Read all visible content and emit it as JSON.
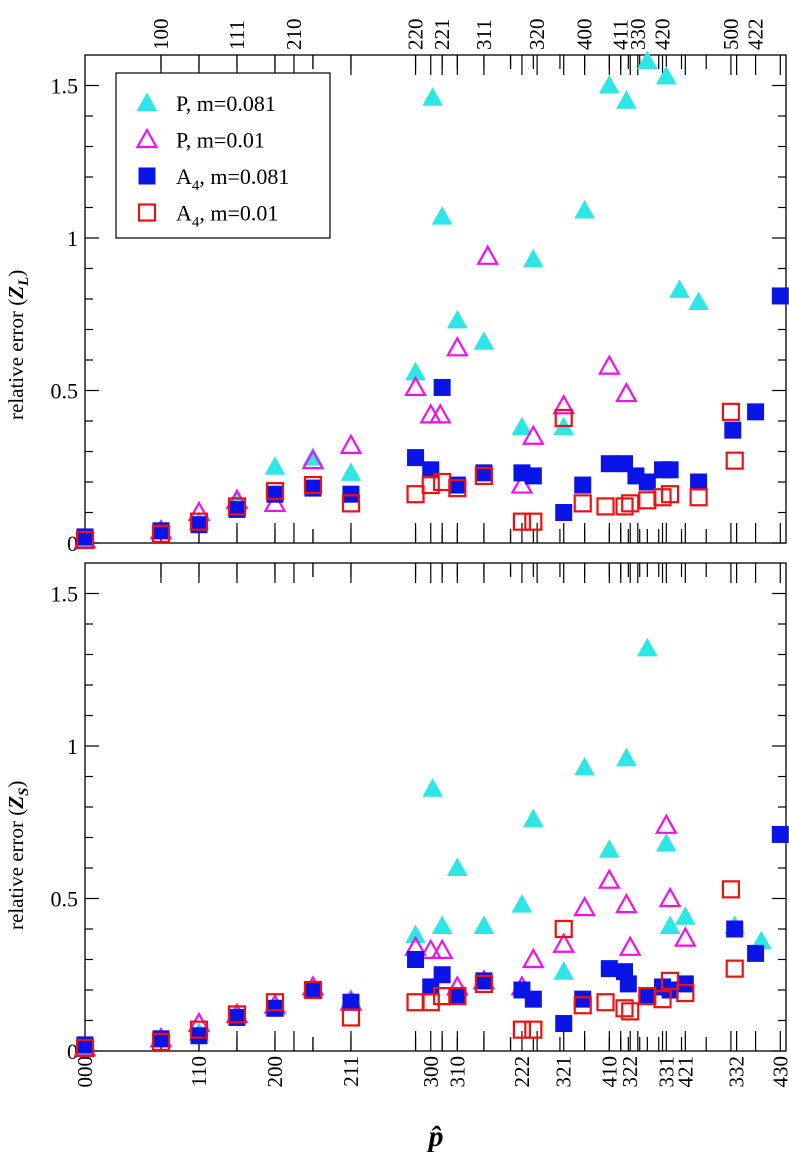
{
  "chart_data": [
    {
      "type": "scatter",
      "panel": "top",
      "ylabel_text": "relative error (",
      "ylabel_var": "Z",
      "ylabel_sub": "L",
      "ylabel_close": ")",
      "ylim": [
        0,
        1.6
      ],
      "yticks": [
        0,
        0.5,
        1,
        1.5
      ],
      "ytick_labels": [
        "0",
        "0.5",
        "1",
        "1.5"
      ],
      "legend_position": "top-left",
      "series": [
        {
          "name": "P, m=0.081",
          "marker": "filled-triangle",
          "color": "#2ee6e6",
          "points": [
            [
              0,
              0.01
            ],
            [
              4,
              0.04
            ],
            [
              6,
              0.07
            ],
            [
              8,
              0.14
            ],
            [
              10,
              0.25
            ],
            [
              12,
              0.28
            ],
            [
              14,
              0.23
            ],
            [
              17.4,
              0.56
            ],
            [
              18.3,
              1.46
            ],
            [
              18.8,
              1.07
            ],
            [
              19.6,
              0.73
            ],
            [
              21,
              0.66
            ],
            [
              23,
              0.38
            ],
            [
              23.6,
              0.93
            ],
            [
              25.2,
              0.38
            ],
            [
              26.3,
              1.09
            ],
            [
              27.6,
              1.5
            ],
            [
              28.5,
              1.45
            ],
            [
              29.6,
              1.58
            ],
            [
              30.6,
              1.53
            ],
            [
              31.3,
              0.83
            ],
            [
              32.3,
              0.79
            ]
          ]
        },
        {
          "name": "P, m=0.01",
          "marker": "open-triangle",
          "color": "#ee11ee",
          "points": [
            [
              0,
              0.01
            ],
            [
              4,
              0.04
            ],
            [
              6,
              0.1
            ],
            [
              8,
              0.14
            ],
            [
              10,
              0.13
            ],
            [
              12,
              0.27
            ],
            [
              14,
              0.32
            ],
            [
              17.4,
              0.51
            ],
            [
              18.2,
              0.42
            ],
            [
              18.7,
              0.42
            ],
            [
              19.6,
              0.64
            ],
            [
              21.2,
              0.94
            ],
            [
              23,
              0.19
            ],
            [
              23.6,
              0.35
            ],
            [
              25.2,
              0.45
            ],
            [
              27.6,
              0.58
            ],
            [
              28.5,
              0.49
            ]
          ]
        },
        {
          "name": "A4, m=0.081",
          "marker": "filled-square",
          "color": "#0a14e6",
          "points": [
            [
              0,
              0.02
            ],
            [
              4,
              0.04
            ],
            [
              6,
              0.06
            ],
            [
              8,
              0.11
            ],
            [
              10,
              0.16
            ],
            [
              12,
              0.18
            ],
            [
              14,
              0.16
            ],
            [
              17.4,
              0.28
            ],
            [
              18.2,
              0.24
            ],
            [
              18.8,
              0.51
            ],
            [
              19.6,
              0.19
            ],
            [
              21,
              0.23
            ],
            [
              23,
              0.23
            ],
            [
              23.6,
              0.22
            ],
            [
              25.2,
              0.1
            ],
            [
              26.2,
              0.19
            ],
            [
              27.6,
              0.26
            ],
            [
              28.4,
              0.26
            ],
            [
              29,
              0.22
            ],
            [
              29.6,
              0.2
            ],
            [
              30.4,
              0.24
            ],
            [
              30.8,
              0.24
            ],
            [
              32.3,
              0.2
            ],
            [
              34.1,
              0.37
            ],
            [
              35.3,
              0.43
            ],
            [
              36.6,
              0.81
            ]
          ]
        },
        {
          "name": "A4, m=0.01",
          "marker": "open-square",
          "color": "#ee1111",
          "points": [
            [
              0,
              0.01
            ],
            [
              4,
              0.03
            ],
            [
              6,
              0.07
            ],
            [
              8,
              0.12
            ],
            [
              10,
              0.17
            ],
            [
              12,
              0.19
            ],
            [
              14,
              0.13
            ],
            [
              17.4,
              0.16
            ],
            [
              18.2,
              0.19
            ],
            [
              18.8,
              0.2
            ],
            [
              19.6,
              0.18
            ],
            [
              21,
              0.22
            ],
            [
              23,
              0.07
            ],
            [
              23.6,
              0.07
            ],
            [
              25.2,
              0.41
            ],
            [
              26.2,
              0.13
            ],
            [
              27.4,
              0.12
            ],
            [
              28.4,
              0.12
            ],
            [
              28.7,
              0.13
            ],
            [
              29.6,
              0.14
            ],
            [
              30.4,
              0.15
            ],
            [
              30.8,
              0.16
            ],
            [
              32.3,
              0.15
            ],
            [
              34,
              0.43
            ],
            [
              34.2,
              0.27
            ]
          ]
        }
      ],
      "legend": [
        {
          "marker": "filled-triangle",
          "color": "#2ee6e6",
          "text": "P, m=0.081",
          "sub": "",
          "suffix": ""
        },
        {
          "marker": "open-triangle",
          "color": "#ee11ee",
          "text": "P, m=0.01",
          "sub": "",
          "suffix": ""
        },
        {
          "marker": "filled-square",
          "color": "#0a14e6",
          "text": "A",
          "sub": "4",
          "suffix": ", m=0.081"
        },
        {
          "marker": "open-square",
          "color": "#ee1111",
          "text": "A",
          "sub": "4",
          "suffix": ", m=0.01"
        }
      ]
    },
    {
      "type": "scatter",
      "panel": "bottom",
      "ylabel_text": "relative error (",
      "ylabel_var": "Z",
      "ylabel_sub": "S",
      "ylabel_close": ")",
      "xlabel": "p̂",
      "ylim": [
        0,
        1.6
      ],
      "yticks": [
        0,
        0.5,
        1,
        1.5
      ],
      "ytick_labels": [
        "0",
        "0.5",
        "1",
        "1.5"
      ],
      "series": [
        {
          "name": "P, m=0.081",
          "marker": "filled-triangle",
          "color": "#2ee6e6",
          "points": [
            [
              0,
              0.01
            ],
            [
              4,
              0.04
            ],
            [
              6,
              0.06
            ],
            [
              8,
              0.12
            ],
            [
              10,
              0.14
            ],
            [
              12,
              0.2
            ],
            [
              14,
              0.17
            ],
            [
              17.4,
              0.38
            ],
            [
              18.3,
              0.86
            ],
            [
              18.8,
              0.41
            ],
            [
              19.6,
              0.6
            ],
            [
              21,
              0.41
            ],
            [
              23,
              0.48
            ],
            [
              23.6,
              0.76
            ],
            [
              25.2,
              0.26
            ],
            [
              26.3,
              0.93
            ],
            [
              27.6,
              0.66
            ],
            [
              28.5,
              0.96
            ],
            [
              29.6,
              1.32
            ],
            [
              30.6,
              0.68
            ],
            [
              30.8,
              0.41
            ],
            [
              31.6,
              0.44
            ],
            [
              34.2,
              0.41
            ],
            [
              35.6,
              0.36
            ]
          ]
        },
        {
          "name": "P, m=0.01",
          "marker": "open-triangle",
          "color": "#ee11ee",
          "points": [
            [
              0,
              0.01
            ],
            [
              4,
              0.04
            ],
            [
              6,
              0.09
            ],
            [
              8,
              0.12
            ],
            [
              10,
              0.15
            ],
            [
              12,
              0.21
            ],
            [
              14,
              0.16
            ],
            [
              17.4,
              0.34
            ],
            [
              18.2,
              0.33
            ],
            [
              18.8,
              0.33
            ],
            [
              19.6,
              0.21
            ],
            [
              21,
              0.23
            ],
            [
              23,
              0.21
            ],
            [
              23.6,
              0.3
            ],
            [
              25.2,
              0.35
            ],
            [
              26.3,
              0.47
            ],
            [
              27.6,
              0.56
            ],
            [
              28.5,
              0.48
            ],
            [
              28.7,
              0.34
            ],
            [
              30.6,
              0.74
            ],
            [
              30.8,
              0.5
            ],
            [
              31.6,
              0.37
            ]
          ]
        },
        {
          "name": "A4, m=0.081",
          "marker": "filled-square",
          "color": "#0a14e6",
          "points": [
            [
              0,
              0.02
            ],
            [
              4,
              0.04
            ],
            [
              6,
              0.05
            ],
            [
              8,
              0.11
            ],
            [
              10,
              0.14
            ],
            [
              12,
              0.2
            ],
            [
              14,
              0.16
            ],
            [
              17.4,
              0.3
            ],
            [
              18.2,
              0.21
            ],
            [
              18.8,
              0.25
            ],
            [
              19.6,
              0.18
            ],
            [
              21,
              0.23
            ],
            [
              23,
              0.2
            ],
            [
              23.6,
              0.17
            ],
            [
              25.2,
              0.09
            ],
            [
              26.2,
              0.17
            ],
            [
              27.6,
              0.27
            ],
            [
              28.4,
              0.26
            ],
            [
              28.6,
              0.22
            ],
            [
              29.6,
              0.18
            ],
            [
              30.4,
              0.21
            ],
            [
              30.8,
              0.2
            ],
            [
              31.6,
              0.22
            ],
            [
              34.2,
              0.4
            ],
            [
              35.3,
              0.32
            ],
            [
              36.6,
              0.71
            ]
          ]
        },
        {
          "name": "A4, m=0.01",
          "marker": "open-square",
          "color": "#ee1111",
          "points": [
            [
              0,
              0.01
            ],
            [
              4,
              0.03
            ],
            [
              6,
              0.07
            ],
            [
              8,
              0.12
            ],
            [
              10,
              0.16
            ],
            [
              12,
              0.2
            ],
            [
              14,
              0.11
            ],
            [
              17.4,
              0.16
            ],
            [
              18.2,
              0.16
            ],
            [
              18.8,
              0.18
            ],
            [
              19.6,
              0.18
            ],
            [
              21,
              0.22
            ],
            [
              23,
              0.07
            ],
            [
              23.6,
              0.07
            ],
            [
              25.2,
              0.4
            ],
            [
              26.2,
              0.15
            ],
            [
              27.4,
              0.16
            ],
            [
              28.4,
              0.14
            ],
            [
              28.7,
              0.13
            ],
            [
              29.6,
              0.18
            ],
            [
              30.4,
              0.17
            ],
            [
              30.8,
              0.23
            ],
            [
              31.6,
              0.19
            ],
            [
              34,
              0.53
            ],
            [
              34.2,
              0.27
            ]
          ]
        }
      ]
    }
  ],
  "x_axis": {
    "xlim": [
      0,
      36.9
    ],
    "top_ticks": [
      {
        "x": 4,
        "label": "100"
      },
      {
        "x": 8,
        "label": "111"
      },
      {
        "x": 11,
        "label": "210"
      },
      {
        "x": 17.4,
        "label": "220"
      },
      {
        "x": 18.8,
        "label": "221"
      },
      {
        "x": 21,
        "label": "311"
      },
      {
        "x": 23.8,
        "label": "320"
      },
      {
        "x": 26.3,
        "label": "400"
      },
      {
        "x": 28.2,
        "label": "411"
      },
      {
        "x": 29.1,
        "label": "330"
      },
      {
        "x": 30.4,
        "label": "420"
      },
      {
        "x": 34,
        "label": "500"
      },
      {
        "x": 35.3,
        "label": "422"
      }
    ],
    "top_minor": [
      6,
      10,
      12,
      14,
      19.6,
      22.4,
      25,
      27.6,
      28.6,
      29.6,
      31.4,
      32.7
    ],
    "bottom_ticks": [
      {
        "x": 0,
        "label": "000"
      },
      {
        "x": 6,
        "label": "110"
      },
      {
        "x": 10,
        "label": "200"
      },
      {
        "x": 14,
        "label": "211"
      },
      {
        "x": 18.2,
        "label": "300"
      },
      {
        "x": 19.6,
        "label": "310"
      },
      {
        "x": 23,
        "label": "222"
      },
      {
        "x": 25.2,
        "label": "321"
      },
      {
        "x": 27.6,
        "label": "410"
      },
      {
        "x": 28.7,
        "label": "322"
      },
      {
        "x": 30.6,
        "label": "331"
      },
      {
        "x": 31.6,
        "label": "421"
      },
      {
        "x": 34.3,
        "label": "332"
      },
      {
        "x": 36.6,
        "label": "430"
      }
    ],
    "bottom_minor": [
      4,
      8,
      12,
      17.4,
      18.8,
      21,
      22.4,
      23.6,
      26.3,
      28.2,
      29.2,
      30.2
    ]
  }
}
